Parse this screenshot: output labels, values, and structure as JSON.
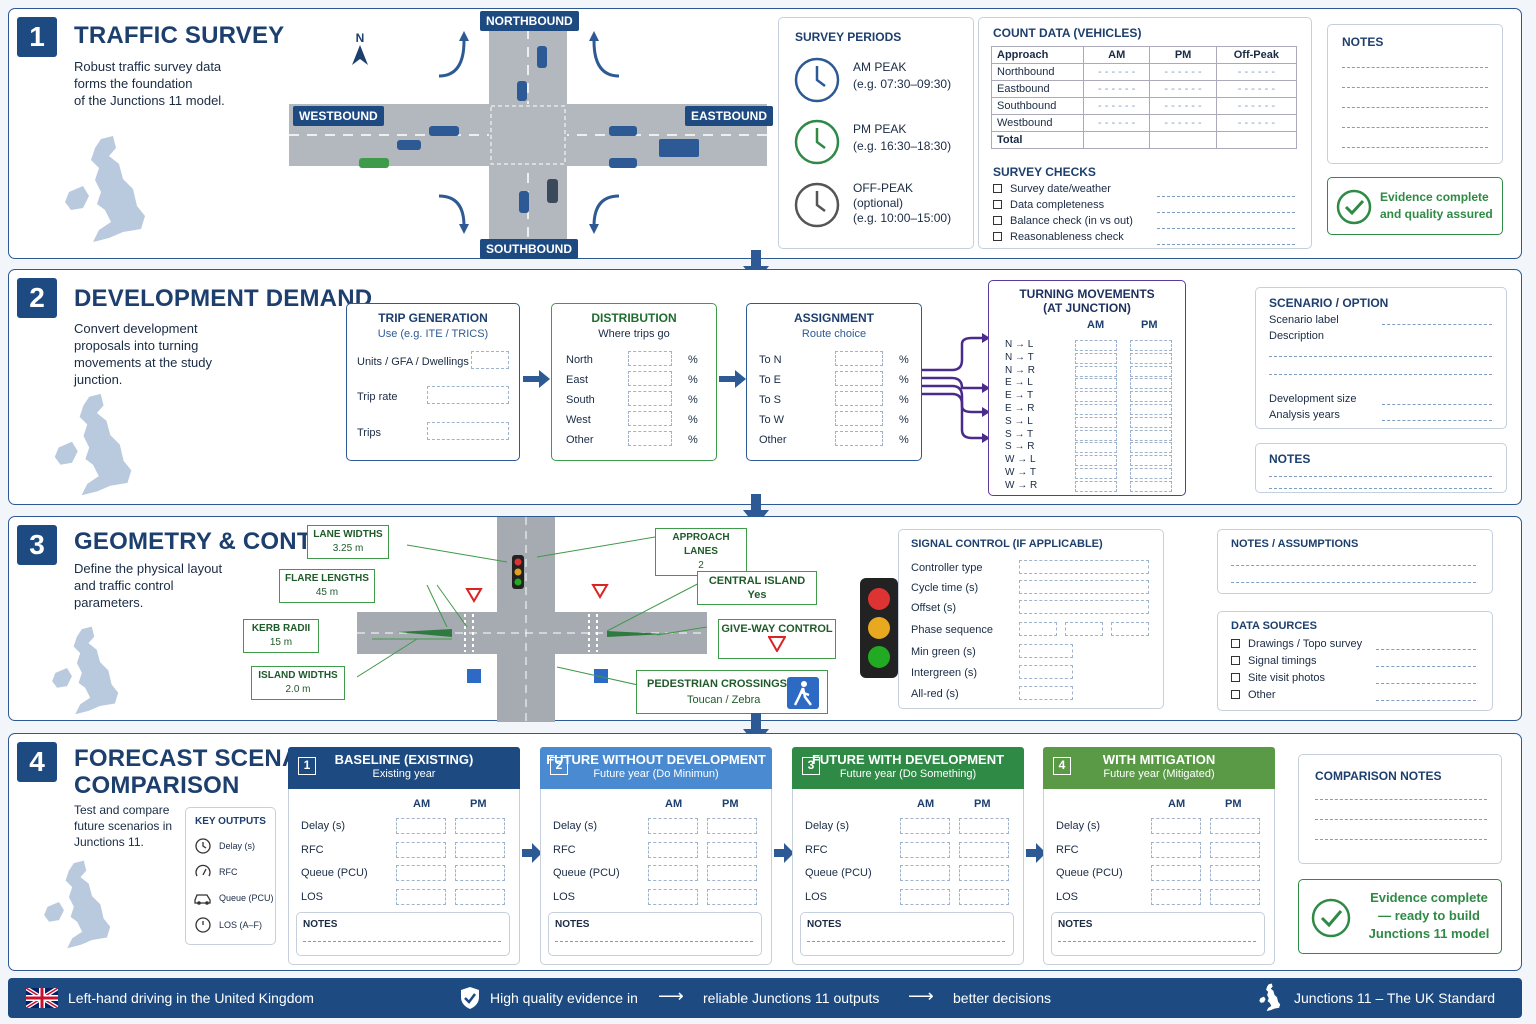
{
  "s1": {
    "num": "1",
    "title": "TRAFFIC SURVEY",
    "desc": [
      "Robust traffic survey data",
      "forms the foundation",
      "of the Junctions 11 model."
    ],
    "compass": "N",
    "roads": {
      "north": "NORTHBOUND",
      "south": "SOUTHBOUND",
      "west": "WESTBOUND",
      "east": "EASTBOUND"
    },
    "periods": {
      "title": "SURVEY PERIODS",
      "items": [
        {
          "name": "AM PEAK",
          "detail": "(e.g. 07:30–09:30)",
          "color": "#2d5a94"
        },
        {
          "name": "PM PEAK",
          "detail": "(e.g. 16:30–18:30)",
          "color": "#2f8a46"
        },
        {
          "name": "OFF-PEAK",
          "detail": "(optional)",
          "detail2": "(e.g. 10:00–15:00)",
          "color": "#555555"
        }
      ]
    },
    "count": {
      "title": "COUNT DATA (VEHICLES)",
      "headers": [
        "Approach",
        "AM",
        "PM",
        "Off-Peak"
      ],
      "rows": [
        "Northbound",
        "Eastbound",
        "Southbound",
        "Westbound",
        "Total"
      ]
    },
    "checks": {
      "title": "SURVEY CHECKS",
      "items": [
        "Survey date/weather",
        "Data completeness",
        "Balance check (in vs out)",
        "Reasonableness check"
      ]
    },
    "notes_title": "NOTES",
    "evidence": [
      "Evidence complete",
      "and quality assured"
    ]
  },
  "s2": {
    "num": "2",
    "title": "DEVELOPMENT DEMAND",
    "desc": [
      "Convert development",
      "proposals into turning",
      "movements at the study",
      "junction."
    ],
    "trip": {
      "title": "TRIP GENERATION",
      "sub": "Use (e.g. ITE / TRICS)",
      "rows": [
        "Units / GFA / Dwellings",
        "Trip rate",
        "Trips"
      ]
    },
    "dist": {
      "title": "DISTRIBUTION",
      "sub": "Where trips go",
      "rows": [
        "North",
        "East",
        "South",
        "West",
        "Other"
      ],
      "unit": "%"
    },
    "assign": {
      "title": "ASSIGNMENT",
      "sub": "Route choice",
      "rows": [
        "To N",
        "To E",
        "To S",
        "To W",
        "Other"
      ],
      "unit": "%"
    },
    "turning": {
      "title": "TURNING MOVEMENTS",
      "title2": "(AT JUNCTION)",
      "cols": [
        "AM",
        "PM"
      ],
      "rows": [
        "N → L",
        "N → T",
        "N → R",
        "E → L",
        "E → T",
        "E → R",
        "S → L",
        "S → T",
        "S → R",
        "W → L",
        "W → T",
        "W → R"
      ]
    },
    "scenario": {
      "title": "SCENARIO / OPTION",
      "rows": [
        "Scenario label",
        "Description",
        "Development size",
        "Analysis years"
      ]
    },
    "notes_title": "NOTES"
  },
  "s3": {
    "num": "3",
    "title": "GEOMETRY & CONTROL",
    "desc": [
      "Define the physical layout",
      "and traffic control",
      "parameters."
    ],
    "callouts": {
      "lane": [
        "LANE WIDTHS",
        "3.25 m"
      ],
      "flare": [
        "FLARE LENGTHS",
        "45 m"
      ],
      "kerb": [
        "KERB RADII",
        "15 m"
      ],
      "island": [
        "ISLAND WIDTHS",
        "2.0 m"
      ],
      "approach": [
        "APPROACH LANES",
        "2"
      ],
      "central": [
        "CENTRAL ISLAND",
        "Yes"
      ],
      "giveway": [
        "GIVE-WAY CONTROL"
      ],
      "ped": [
        "PEDESTRIAN CROSSINGS",
        "Toucan / Zebra"
      ]
    },
    "signal": {
      "title": "SIGNAL CONTROL (IF APPLICABLE)",
      "rows": [
        "Controller type",
        "Cycle time (s)",
        "Offset (s)",
        "Phase sequence",
        "Min green (s)",
        "Intergreen (s)",
        "All-red (s)"
      ]
    },
    "notes_title": "NOTES / ASSUMPTIONS",
    "sources": {
      "title": "DATA SOURCES",
      "items": [
        "Drawings / Topo survey",
        "Signal timings",
        "Site visit photos",
        "Other"
      ]
    }
  },
  "s4": {
    "num": "4",
    "title": [
      "FORECAST SCENARIO",
      "COMPARISON"
    ],
    "desc": [
      "Test and compare",
      "future scenarios in",
      "Junctions 11."
    ],
    "key": {
      "title": "KEY OUTPUTS",
      "items": [
        "Delay (s)",
        "RFC",
        "Queue (PCU)",
        "LOS (A–F)"
      ]
    },
    "scenarios": [
      {
        "n": "1",
        "title": "BASELINE (EXISTING)",
        "sub": "Existing year",
        "color": "#1d4a80"
      },
      {
        "n": "2",
        "title": "FUTURE WITHOUT DEVELOPMENT",
        "sub": "Future year (Do Minimun)",
        "color": "#4a8ad0"
      },
      {
        "n": "3",
        "title": "FUTURE WITH DEVELOPMENT",
        "sub": "Future year (Do Something)",
        "color": "#2f8a46"
      },
      {
        "n": "4",
        "title": "WITH MITIGATION",
        "sub": "Future year (Mitigated)",
        "color": "#5a9a46"
      }
    ],
    "cols": [
      "AM",
      "PM"
    ],
    "rows": [
      "Delay (s)",
      "RFC",
      "Queue (PCU)",
      "LOS"
    ],
    "notes_label": "NOTES",
    "comparison_title": "COMPARISON NOTES",
    "evidence": [
      "Evidence complete",
      "— ready to build",
      "Junctions 11 model"
    ]
  },
  "footer": {
    "left": "Left-hand driving in the United Kingdom",
    "mid1": "High quality evidence in",
    "mid2": "reliable Junctions 11 outputs",
    "mid3": "better decisions",
    "right": "Junctions 11 – The UK Standard"
  }
}
